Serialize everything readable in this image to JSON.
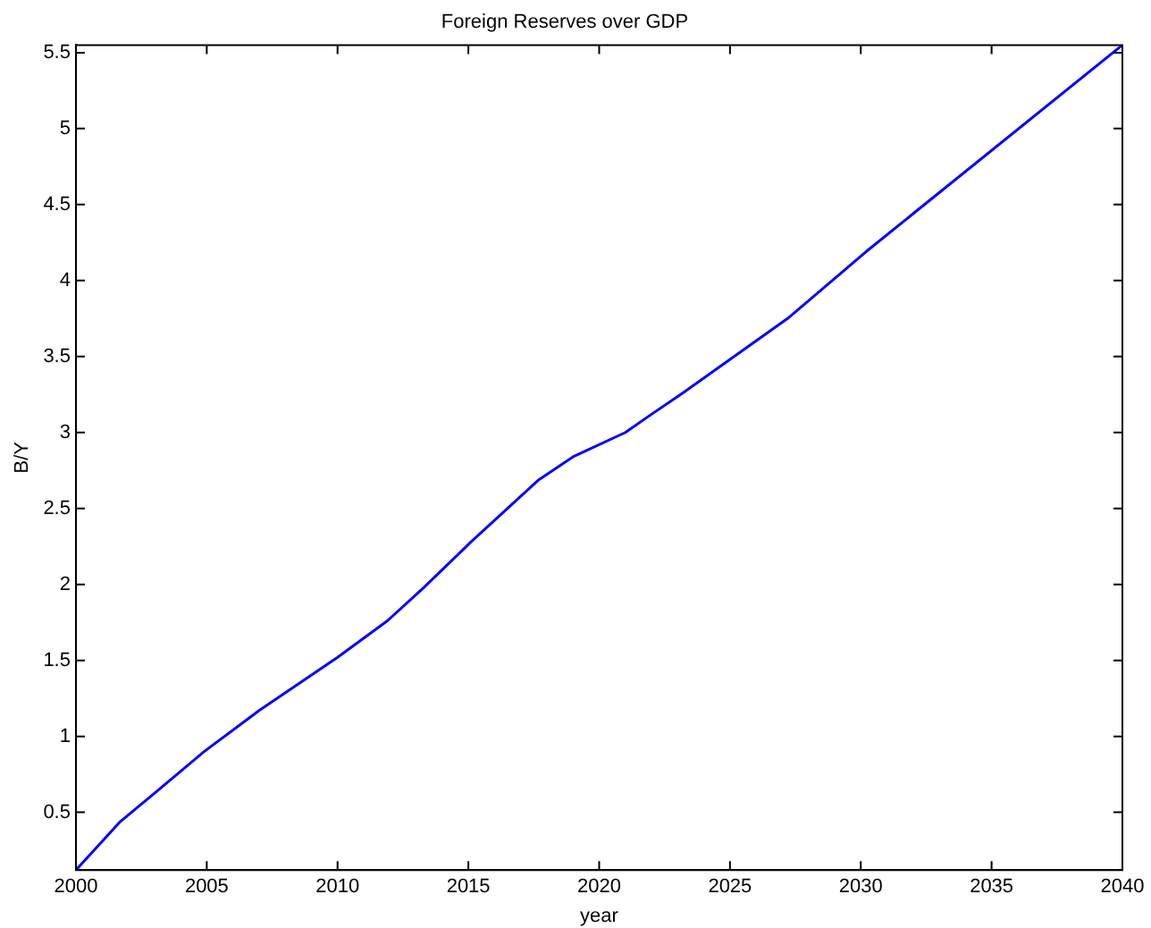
{
  "chart_data": {
    "type": "line",
    "title": "Foreign Reserves over GDP",
    "xlabel": "year",
    "ylabel": "B/Y",
    "x": [
      2000,
      2001.7,
      2003.1,
      2004.9,
      2007,
      2010,
      2011.9,
      2013.3,
      2015.1,
      2017.7,
      2019,
      2021,
      2022,
      2023.2,
      2027.2,
      2030.2,
      2032,
      2040
    ],
    "series": [
      {
        "color": "#0000ff",
        "values": [
          0.12,
          0.44,
          0.64,
          0.9,
          1.17,
          1.52,
          1.76,
          1.98,
          2.28,
          2.69,
          2.84,
          3.0,
          3.12,
          3.26,
          3.75,
          4.19,
          4.44,
          5.55
        ]
      }
    ],
    "xlim": [
      2000,
      2040
    ],
    "xticks": [
      2000,
      2005,
      2010,
      2015,
      2020,
      2025,
      2030,
      2035,
      2040
    ],
    "ylim": [
      0.12,
      5.55
    ],
    "yticks": [
      0.5,
      1,
      1.5,
      2,
      2.5,
      3,
      3.5,
      4,
      4.5,
      5,
      5.5
    ],
    "grid": false,
    "legend": false,
    "marker": "none",
    "line_style": "solid"
  }
}
